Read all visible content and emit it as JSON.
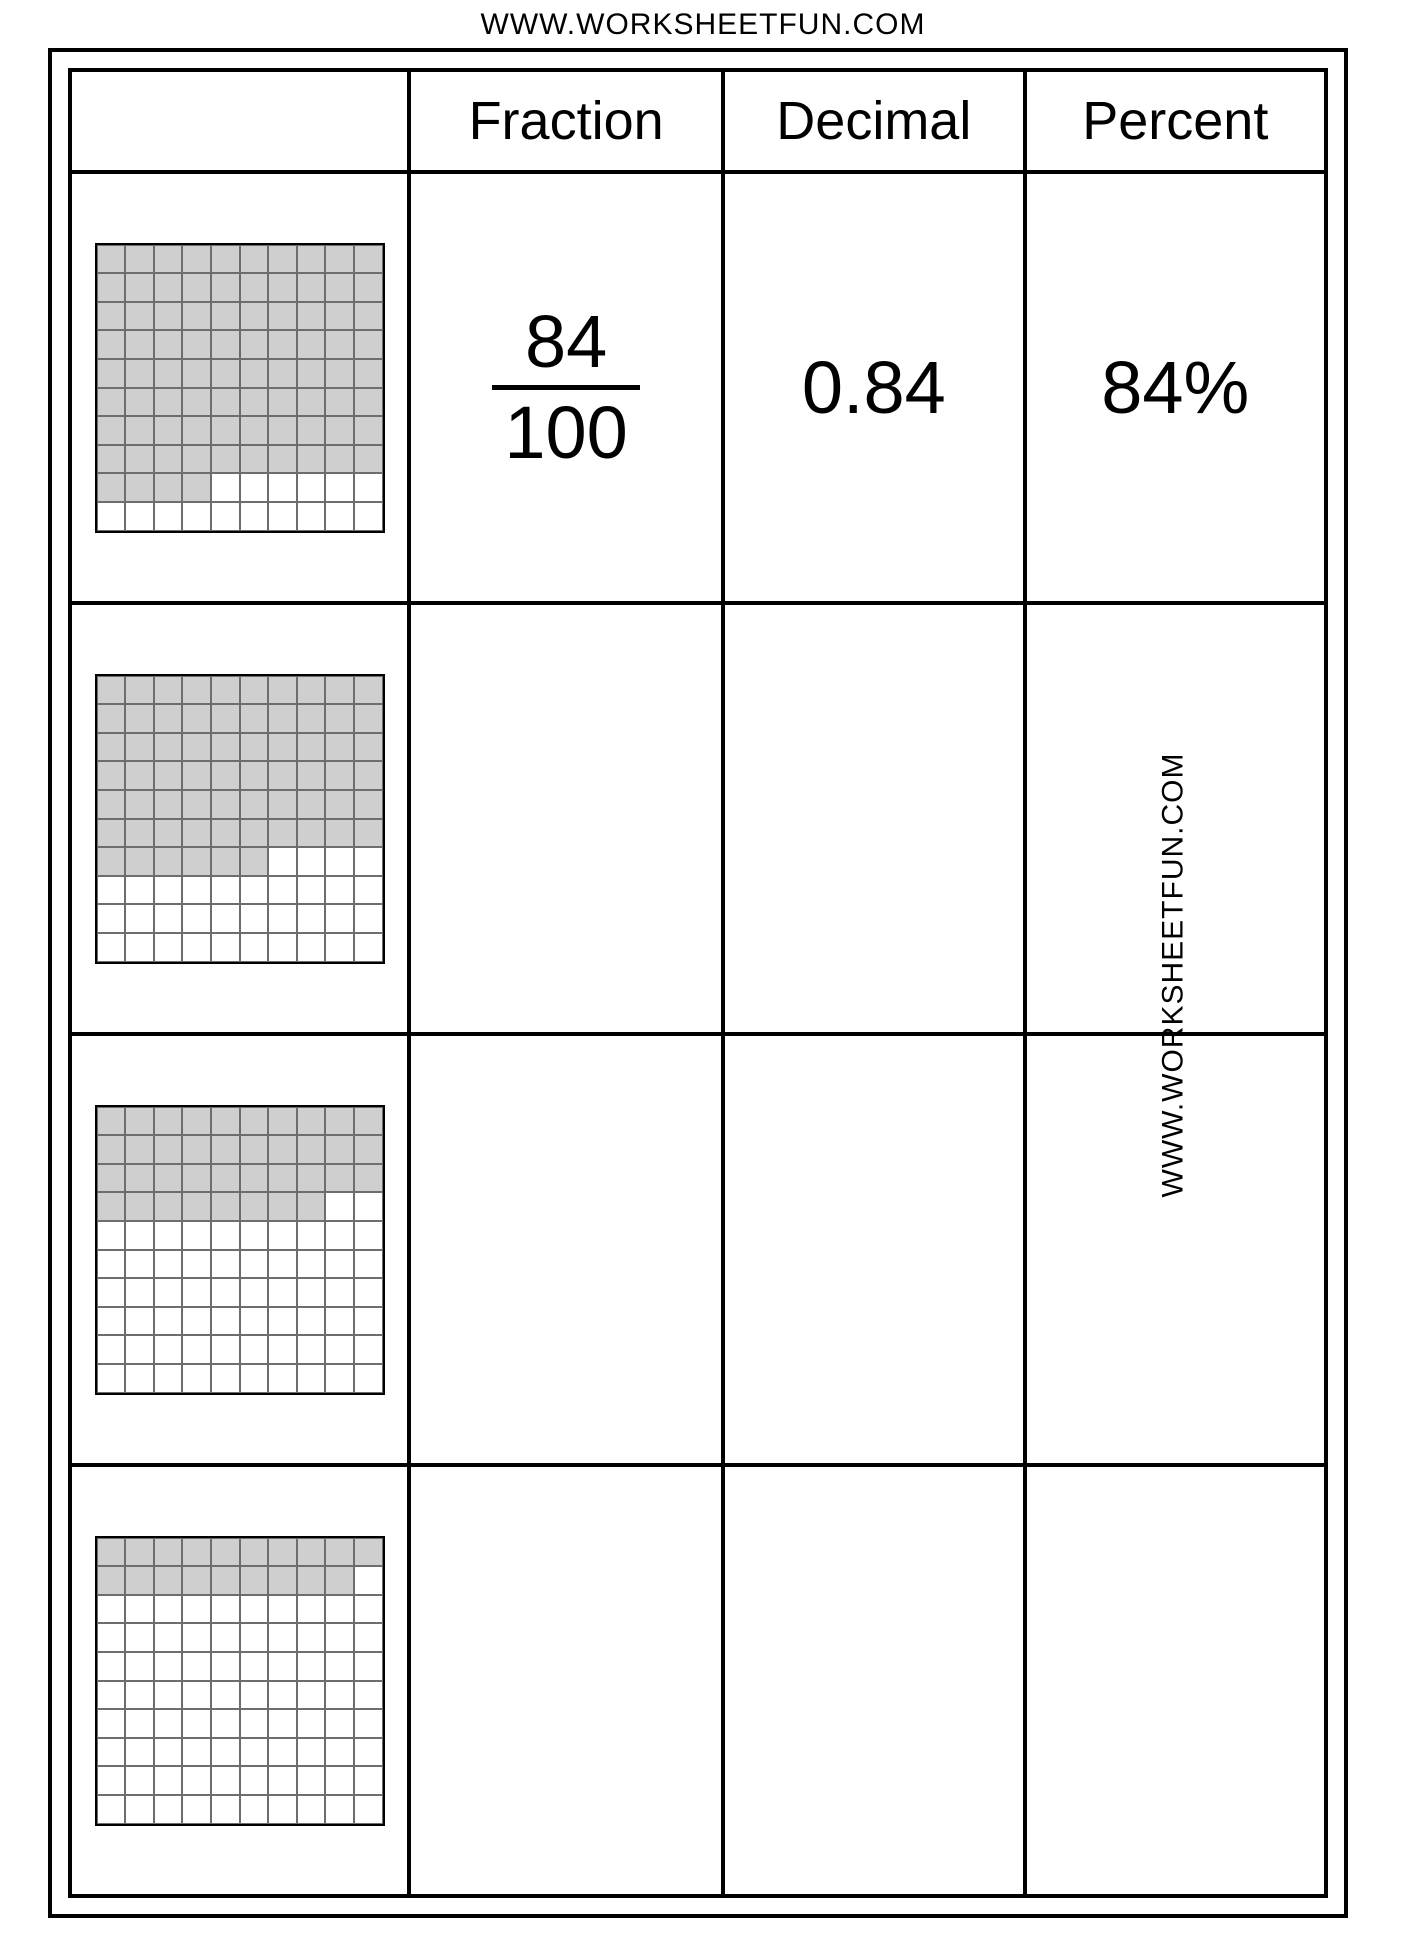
{
  "header_url": "WWW.WORKSHEETFUN.COM",
  "side_url": "WWW.WORKSHEETFUN.COM",
  "columns": {
    "fraction": "Fraction",
    "decimal": "Decimal",
    "percent": "Percent"
  },
  "grid_style": {
    "rows": 10,
    "cols": 10,
    "shaded_color": "#cfcfcf",
    "blank_color": "#ffffff",
    "cell_border_color": "#6d6d6d",
    "outer_border_color": "#000000"
  },
  "rows": [
    {
      "shaded_count": 84,
      "fraction_numerator": "84",
      "fraction_denominator": "100",
      "decimal": "0.84",
      "percent": "84%"
    },
    {
      "shaded_count": 66,
      "fraction_numerator": "",
      "fraction_denominator": "",
      "decimal": "",
      "percent": ""
    },
    {
      "shaded_count": 38,
      "fraction_numerator": "",
      "fraction_denominator": "",
      "decimal": "",
      "percent": ""
    },
    {
      "shaded_count": 19,
      "fraction_numerator": "",
      "fraction_denominator": "",
      "decimal": "",
      "percent": ""
    }
  ]
}
